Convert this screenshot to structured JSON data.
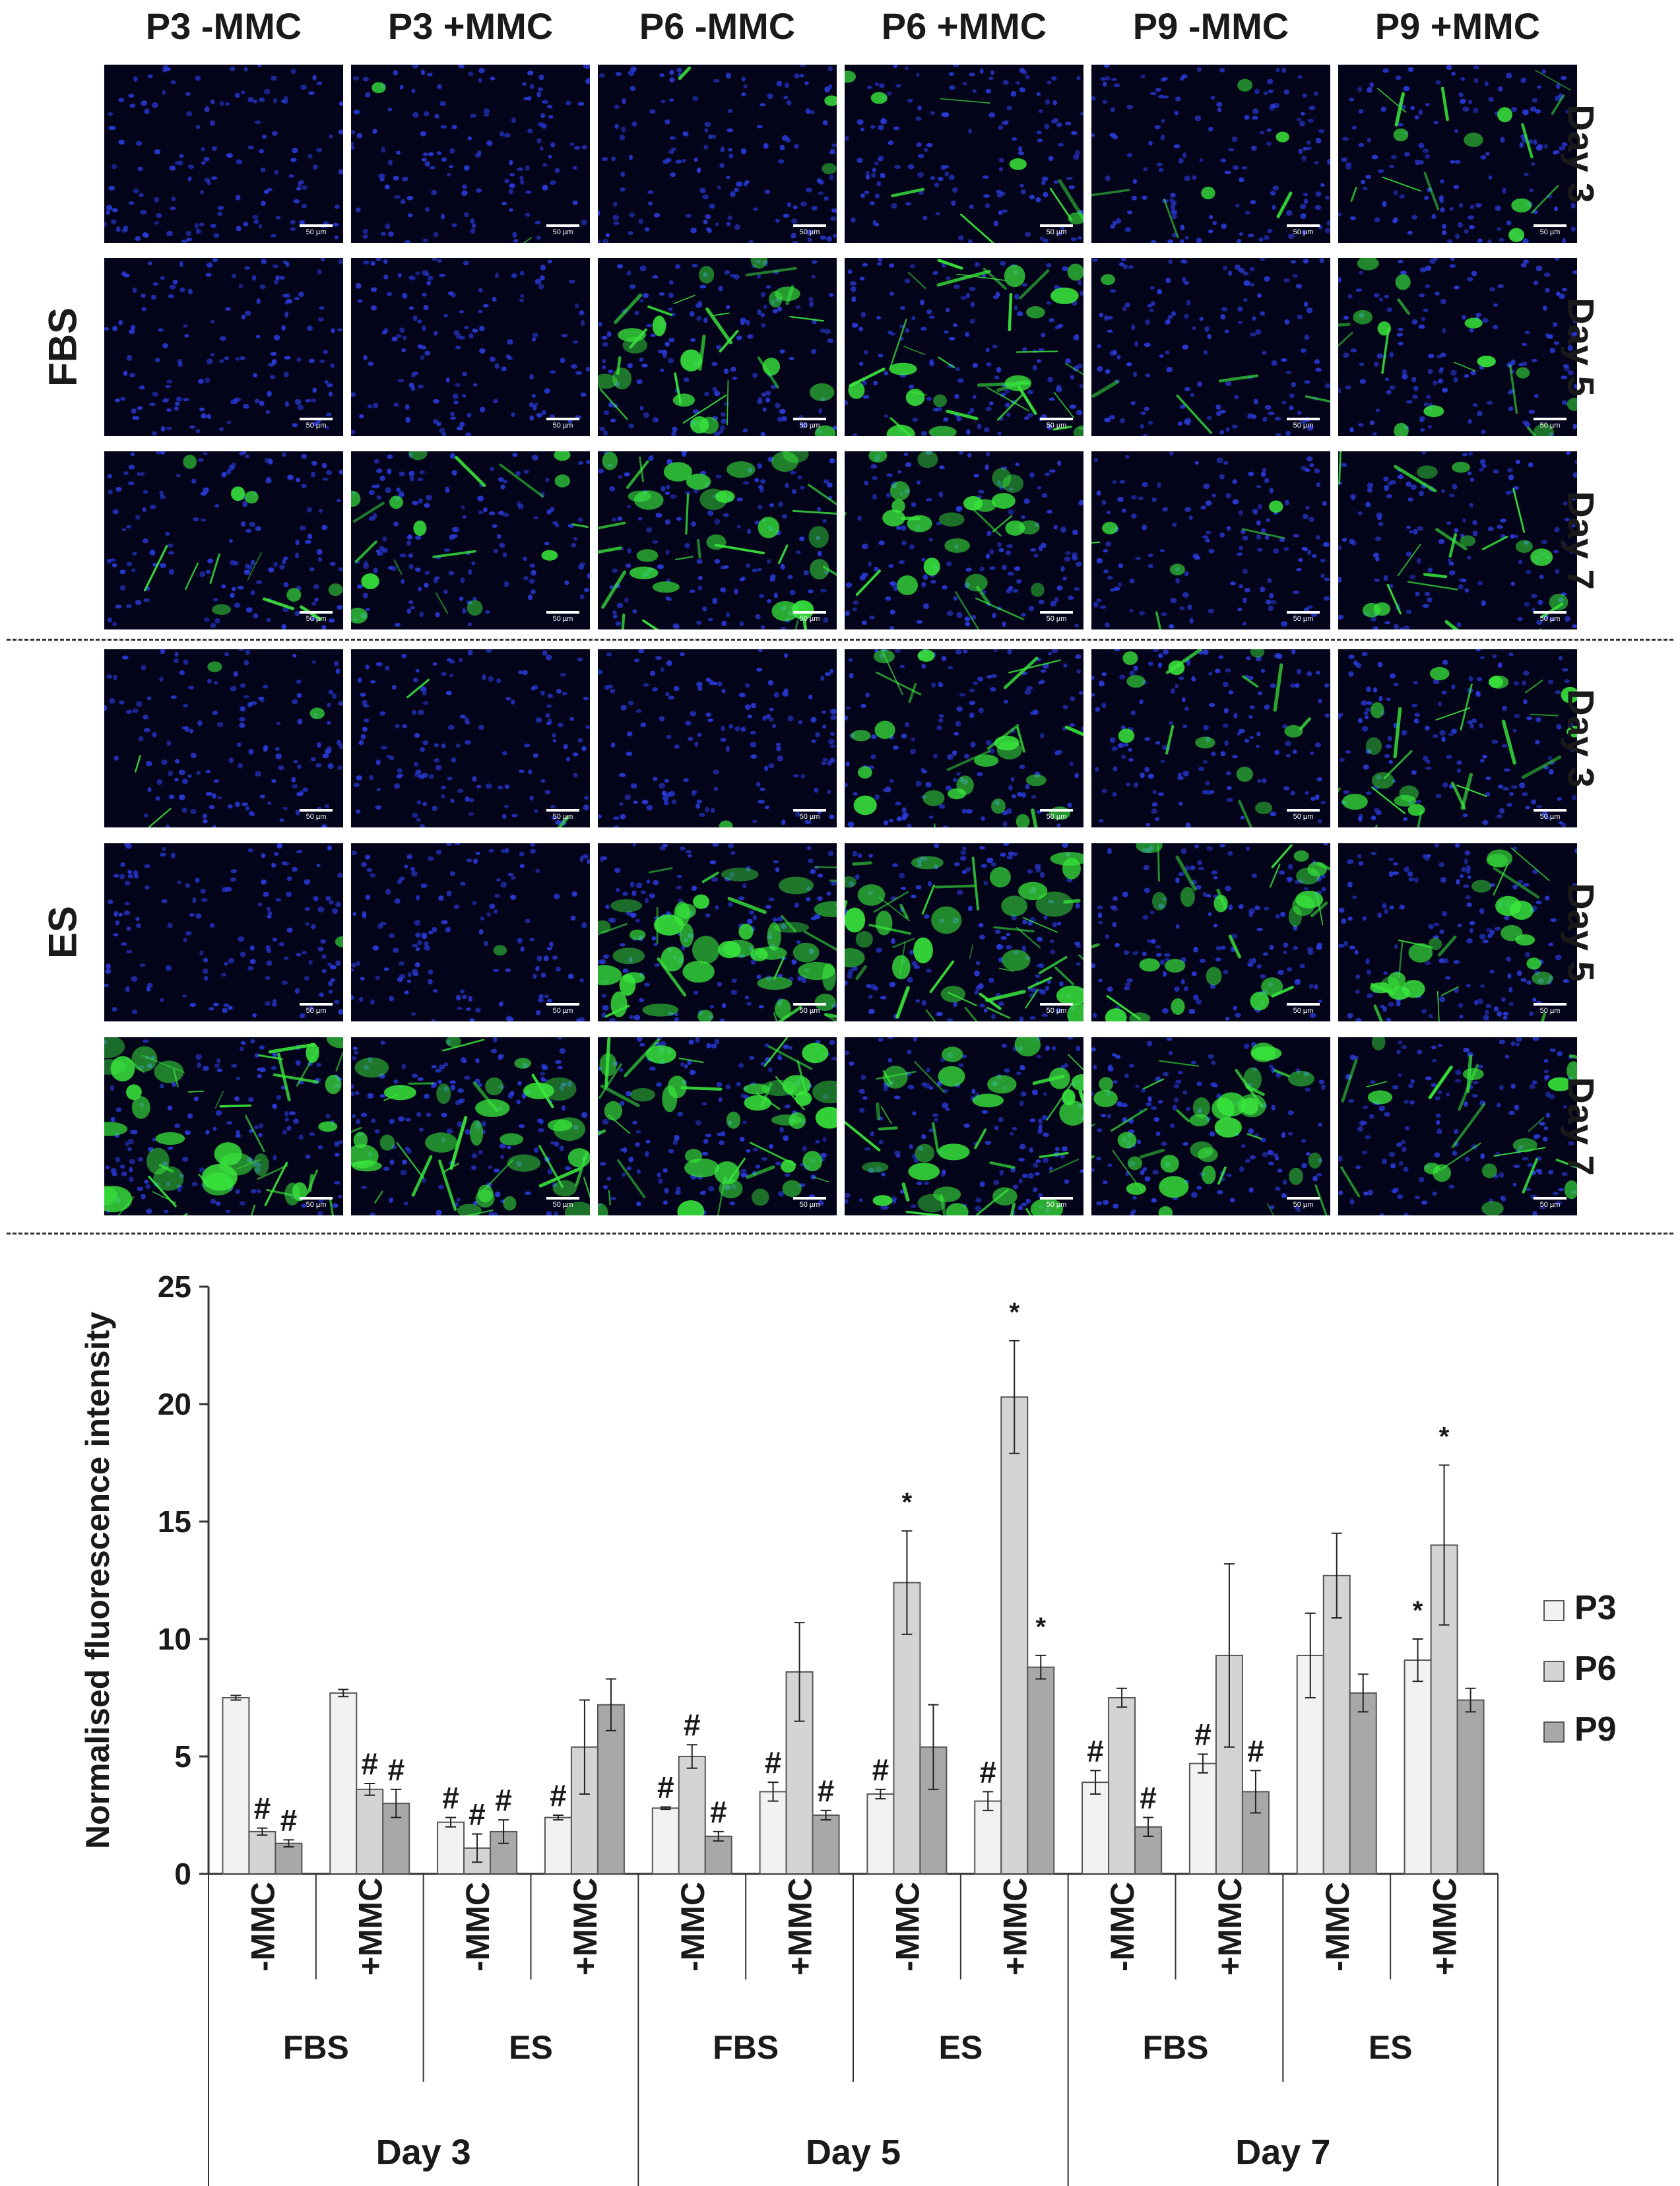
{
  "figure": {
    "columns": [
      "P3 -MMC",
      "P3 +MMC",
      "P6 -MMC",
      "P6 +MMC",
      "P9 -MMC",
      "P9 +MMC"
    ],
    "groups": [
      {
        "label": "FBS",
        "rows": [
          "Day 3",
          "Day 5",
          "Day 7"
        ]
      },
      {
        "label": "ES",
        "rows": [
          "Day 3",
          "Day 5",
          "Day 7"
        ]
      }
    ],
    "scale_bar_label": "50 µm",
    "green_intensity": [
      [
        0.0,
        0.03,
        0.05,
        0.15,
        0.1,
        0.25
      ],
      [
        0.0,
        0.0,
        0.55,
        0.6,
        0.08,
        0.3
      ],
      [
        0.2,
        0.3,
        0.6,
        0.45,
        0.1,
        0.35
      ],
      [
        0.06,
        0.04,
        0.02,
        0.45,
        0.25,
        0.45
      ],
      [
        0.02,
        0.02,
        0.85,
        0.85,
        0.5,
        0.45
      ],
      [
        0.85,
        0.75,
        0.8,
        0.7,
        0.65,
        0.4
      ]
    ],
    "colors": {
      "nuclei": "#2a3bd8",
      "stain": "#39e83c",
      "panel_bg": "#03031a"
    }
  },
  "chart_data": {
    "type": "bar",
    "ylabel": "Normalised fluorescence intensity",
    "ylim": [
      0,
      25
    ],
    "yticks": [
      0,
      5,
      10,
      15,
      20,
      25
    ],
    "legend": {
      "position": "right",
      "entries": [
        "P3",
        "P6",
        "P9"
      ]
    },
    "series_colors": [
      "#f2f2f2",
      "#d4d4d4",
      "#a8a8a8"
    ],
    "groups": [
      {
        "day": "Day 3",
        "medium": "FBS",
        "mmc": "-MMC",
        "values": [
          7.5,
          1.8,
          1.3
        ],
        "errors": [
          0.1,
          0.15,
          0.15
        ],
        "marks": [
          "",
          "#",
          "#"
        ]
      },
      {
        "day": "Day 3",
        "medium": "FBS",
        "mmc": "+MMC",
        "values": [
          7.7,
          3.6,
          3.0
        ],
        "errors": [
          0.15,
          0.25,
          0.6
        ],
        "marks": [
          "",
          "#",
          "#"
        ]
      },
      {
        "day": "Day 3",
        "medium": "ES",
        "mmc": "-MMC",
        "values": [
          2.2,
          1.1,
          1.8
        ],
        "errors": [
          0.2,
          0.6,
          0.5
        ],
        "marks": [
          "#",
          "#",
          "#"
        ]
      },
      {
        "day": "Day 3",
        "medium": "ES",
        "mmc": "+MMC",
        "values": [
          2.4,
          5.4,
          7.2
        ],
        "errors": [
          0.1,
          2.0,
          1.1
        ],
        "marks": [
          "#",
          "",
          ""
        ]
      },
      {
        "day": "Day 5",
        "medium": "FBS",
        "mmc": "-MMC",
        "values": [
          2.8,
          5.0,
          1.6
        ],
        "errors": [
          0.05,
          0.5,
          0.2
        ],
        "marks": [
          "#",
          "#",
          "#"
        ]
      },
      {
        "day": "Day 5",
        "medium": "FBS",
        "mmc": "+MMC",
        "values": [
          3.5,
          8.6,
          2.5
        ],
        "errors": [
          0.4,
          2.1,
          0.2
        ],
        "marks": [
          "#",
          "",
          "#"
        ]
      },
      {
        "day": "Day 5",
        "medium": "ES",
        "mmc": "-MMC",
        "values": [
          3.4,
          12.4,
          5.4
        ],
        "errors": [
          0.2,
          2.2,
          1.8
        ],
        "marks": [
          "#",
          "*",
          ""
        ]
      },
      {
        "day": "Day 5",
        "medium": "ES",
        "mmc": "+MMC",
        "values": [
          3.1,
          20.3,
          8.8
        ],
        "errors": [
          0.4,
          2.4,
          0.5
        ],
        "marks": [
          "#",
          "*",
          "*"
        ]
      },
      {
        "day": "Day 7",
        "medium": "FBS",
        "mmc": "-MMC",
        "values": [
          3.9,
          7.5,
          2.0
        ],
        "errors": [
          0.5,
          0.4,
          0.4
        ],
        "marks": [
          "#",
          "",
          "#"
        ]
      },
      {
        "day": "Day 7",
        "medium": "FBS",
        "mmc": "+MMC",
        "values": [
          4.7,
          9.3,
          3.5
        ],
        "errors": [
          0.4,
          3.9,
          0.9
        ],
        "marks": [
          "#",
          "",
          "#"
        ]
      },
      {
        "day": "Day 7",
        "medium": "ES",
        "mmc": "-MMC",
        "values": [
          9.3,
          12.7,
          7.7
        ],
        "errors": [
          1.8,
          1.8,
          0.8
        ],
        "marks": [
          "",
          "",
          ""
        ]
      },
      {
        "day": "Day 7",
        "medium": "ES",
        "mmc": "+MMC",
        "values": [
          9.1,
          14.0,
          7.4
        ],
        "errors": [
          0.9,
          3.4,
          0.5
        ],
        "marks": [
          "*",
          "*",
          ""
        ]
      }
    ]
  }
}
